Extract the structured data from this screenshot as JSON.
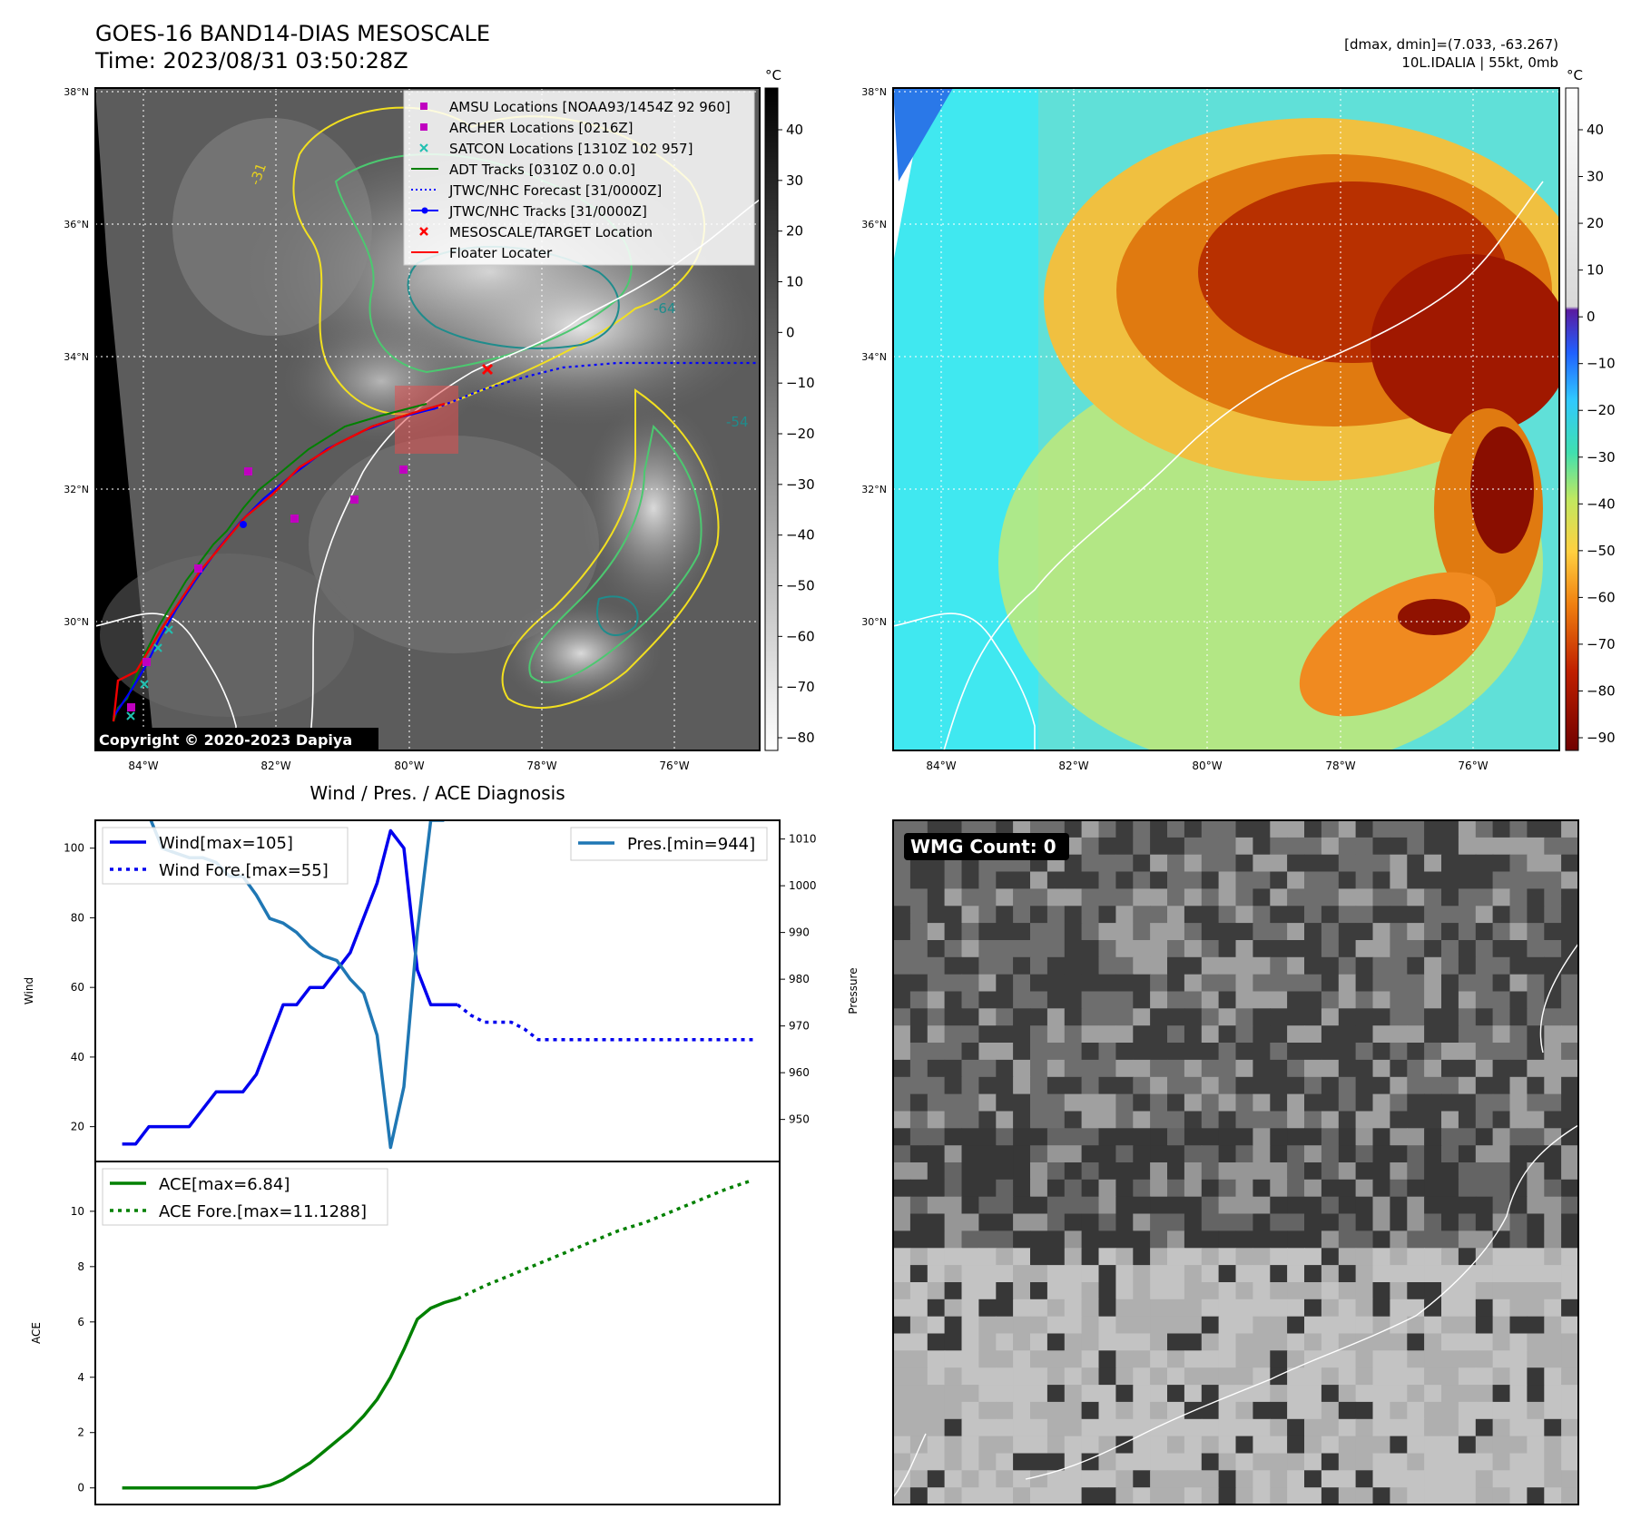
{
  "header": {
    "title_line1": "GOES-16 BAND14-DIAS MESOSCALE",
    "title_line2": "Time: 2023/08/31 03:50:28Z",
    "right_line1": "[dmax, dmin]=(7.033, -63.267)",
    "right_line2": "10L.IDALIA | 55kt, 0mb"
  },
  "copyright": "Copyright © 2020-2023 Dapiya",
  "map_axes": {
    "lat_labels": [
      "38°N",
      "36°N",
      "34°N",
      "32°N",
      "30°N"
    ],
    "lon_labels": [
      "84°W",
      "82°W",
      "80°W",
      "78°W",
      "76°W"
    ]
  },
  "colorbar_left": {
    "unit": "°C",
    "ticks": [
      "40",
      "30",
      "20",
      "10",
      "0",
      "−10",
      "−20",
      "−30",
      "−40",
      "−50",
      "−60",
      "−70",
      "−80"
    ]
  },
  "colorbar_right": {
    "unit": "°C",
    "ticks": [
      "40",
      "30",
      "20",
      "10",
      "0",
      "−10",
      "−20",
      "−30",
      "−40",
      "−50",
      "−60",
      "−70",
      "−80",
      "−90"
    ]
  },
  "map_legend": [
    {
      "label": "AMSU Locations [NOAA93/1454Z 92 960]",
      "marker": "square",
      "color": "#c000c0"
    },
    {
      "label": "ARCHER Locations [0216Z]",
      "marker": "square",
      "color": "#c000c0"
    },
    {
      "label": "SATCON Locations [1310Z 102 957]",
      "marker": "x",
      "color": "#20b2aa"
    },
    {
      "label": "ADT Tracks [0310Z 0.0 0.0]",
      "marker": "line",
      "color": "#008000"
    },
    {
      "label": "JTWC/NHC Forecast [31/0000Z]",
      "marker": "dotted",
      "color": "#0000ff"
    },
    {
      "label": "JTWC/NHC Tracks [31/0000Z]",
      "marker": "line-dot",
      "color": "#0000ff"
    },
    {
      "label": "MESOSCALE/TARGET Location",
      "marker": "x",
      "color": "#ff0000"
    },
    {
      "label": "Floater Locater",
      "marker": "line",
      "color": "#ff0000"
    }
  ],
  "contour_labels": [
    "-31",
    "-64",
    "-54",
    "-31",
    "-54"
  ],
  "wmg_label": "WMG Count: 0",
  "chart_data": [
    {
      "type": "line",
      "title": "Wind / Pres. / ACE Diagnosis",
      "ylabel": "Wind",
      "y2label": "Pressure",
      "ylim": [
        10,
        108
      ],
      "y2lim": [
        941,
        1014
      ],
      "y_ticks": [
        20,
        40,
        60,
        80,
        100
      ],
      "y2_ticks": [
        950,
        960,
        970,
        980,
        990,
        1000,
        1010
      ],
      "series": [
        {
          "name": "Wind[max=105]",
          "axis": "left",
          "style": "solid",
          "color": "#0000ee",
          "x": [
            0,
            1,
            2,
            3,
            4,
            5,
            6,
            7,
            8,
            9,
            10,
            11,
            12,
            13,
            14,
            15,
            16,
            17,
            18,
            19,
            20,
            21,
            22,
            23,
            24,
            25
          ],
          "y": [
            15,
            15,
            20,
            20,
            20,
            20,
            25,
            30,
            30,
            30,
            35,
            45,
            55,
            55,
            60,
            60,
            65,
            70,
            80,
            90,
            105,
            100,
            65,
            55,
            55,
            55
          ]
        },
        {
          "name": "Wind Fore.[max=55]",
          "axis": "left",
          "style": "dotted",
          "color": "#0000ee",
          "x": [
            25,
            26,
            27,
            28,
            29,
            30,
            31,
            32,
            33,
            34,
            35,
            36,
            37,
            38,
            39,
            40,
            41,
            42,
            43,
            44,
            45,
            46,
            47
          ],
          "y": [
            55,
            52,
            50,
            50,
            50,
            48,
            45,
            45,
            45,
            45,
            45,
            45,
            45,
            45,
            45,
            45,
            45,
            45,
            45,
            45,
            45,
            45,
            45
          ]
        },
        {
          "name": "Pres.[min=944]",
          "axis": "right",
          "style": "solid",
          "color": "#1f77b4",
          "x": [
            0,
            1,
            2,
            3,
            4,
            5,
            6,
            7,
            8,
            9,
            10,
            11,
            12,
            13,
            14,
            15,
            16,
            17,
            18,
            19,
            20,
            21,
            22,
            23,
            24
          ],
          "y": [
            1015,
            1015,
            1015,
            1008,
            1007,
            1006,
            1006,
            1005,
            1002,
            1002,
            998,
            993,
            992,
            990,
            987,
            985,
            984,
            980,
            977,
            968,
            944,
            957,
            990,
            1014,
            1014
          ]
        }
      ]
    },
    {
      "type": "line",
      "ylabel": "ACE",
      "ylim": [
        -0.6,
        11.8
      ],
      "y_ticks": [
        0,
        2,
        4,
        6,
        8,
        10
      ],
      "series": [
        {
          "name": "ACE[max=6.84]",
          "style": "solid",
          "color": "#008000",
          "x": [
            0,
            1,
            2,
            3,
            4,
            5,
            6,
            7,
            8,
            9,
            10,
            11,
            12,
            13,
            14,
            15,
            16,
            17,
            18,
            19,
            20,
            21,
            22,
            23,
            24,
            25
          ],
          "y": [
            0,
            0,
            0,
            0,
            0,
            0,
            0,
            0,
            0,
            0,
            0,
            0.1,
            0.3,
            0.6,
            0.9,
            1.3,
            1.7,
            2.1,
            2.6,
            3.2,
            4,
            5,
            6.1,
            6.5,
            6.7,
            6.84
          ]
        },
        {
          "name": "ACE Fore.[max=11.1288]",
          "style": "dotted",
          "color": "#008000",
          "x": [
            25,
            27,
            29,
            31,
            33,
            35,
            37,
            39,
            41,
            43,
            45,
            47
          ],
          "y": [
            6.84,
            7.3,
            7.7,
            8.1,
            8.5,
            8.9,
            9.3,
            9.6,
            10,
            10.4,
            10.8,
            11.1288
          ]
        }
      ]
    }
  ]
}
